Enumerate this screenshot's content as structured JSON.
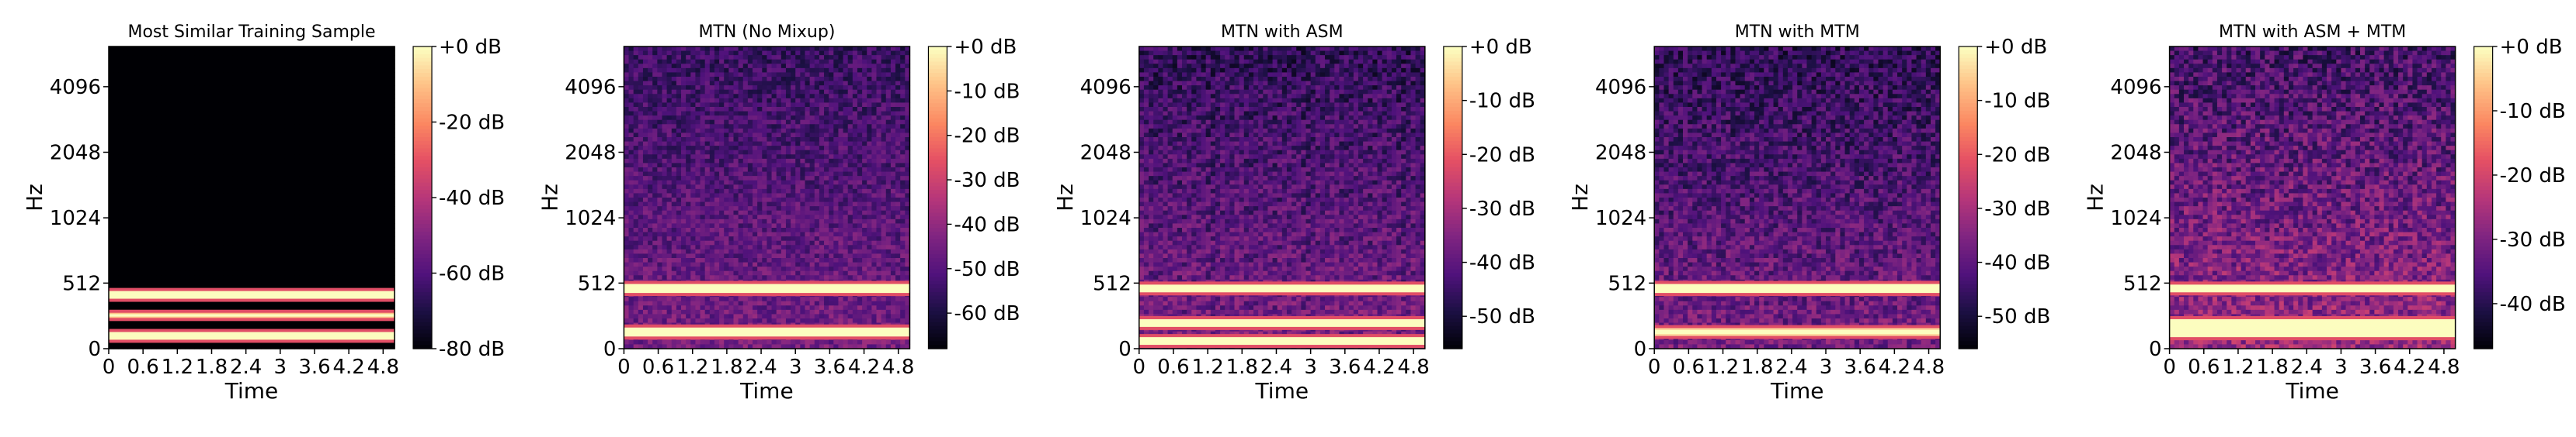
{
  "chart_data": [
    {
      "type": "heatmap",
      "title": "Most Similar Training Sample",
      "xlabel": "Time",
      "ylabel": "Hz",
      "x_ticks": [
        "0",
        "0.6",
        "1.2",
        "1.8",
        "2.4",
        "3",
        "3.6",
        "4.2",
        "4.8"
      ],
      "y_ticks": [
        "0",
        "512",
        "1024",
        "2048",
        "4096"
      ],
      "xlim": [
        0,
        5.0
      ],
      "colorbar": {
        "ticks": [
          "+0 dB",
          "-20 dB",
          "-40 dB",
          "-60 dB",
          "-80 dB"
        ],
        "range_db": [
          -80,
          0
        ]
      },
      "noise_level_db": -80,
      "bands": [
        {
          "freq_center_hz": 100,
          "width_hz": 60,
          "level_db": 0
        },
        {
          "freq_center_hz": 260,
          "width_hz": 40,
          "level_db": -10
        },
        {
          "freq_center_hz": 420,
          "width_hz": 60,
          "level_db": 0
        }
      ]
    },
    {
      "type": "heatmap",
      "title": "MTN (No Mixup)",
      "xlabel": "Time",
      "ylabel": "Hz",
      "x_ticks": [
        "0",
        "0.6",
        "1.2",
        "1.8",
        "2.4",
        "3",
        "3.6",
        "4.2",
        "4.8"
      ],
      "y_ticks": [
        "0",
        "512",
        "1024",
        "2048",
        "4096"
      ],
      "xlim": [
        0,
        5.0
      ],
      "colorbar": {
        "ticks": [
          "+0 dB",
          "-10 dB",
          "-20 dB",
          "-30 dB",
          "-40 dB",
          "-50 dB",
          "-60 dB"
        ],
        "range_db": [
          -68,
          0
        ]
      },
      "noise_level_db": -48,
      "bands": [
        {
          "freq_center_hz": 130,
          "width_hz": 70,
          "level_db": 0
        },
        {
          "freq_center_hz": 470,
          "width_hz": 70,
          "level_db": 0
        }
      ]
    },
    {
      "type": "heatmap",
      "title": "MTN with ASM",
      "xlabel": "Time",
      "ylabel": "Hz",
      "x_ticks": [
        "0",
        "0.6",
        "1.2",
        "1.8",
        "2.4",
        "3",
        "3.6",
        "4.2",
        "4.8"
      ],
      "y_ticks": [
        "0",
        "512",
        "1024",
        "2048",
        "4096"
      ],
      "xlim": [
        0,
        5.0
      ],
      "colorbar": {
        "ticks": [
          "+0 dB",
          "-10 dB",
          "-20 dB",
          "-30 dB",
          "-40 dB",
          "-50 dB"
        ],
        "range_db": [
          -56,
          0
        ]
      },
      "noise_level_db": -40,
      "bands": [
        {
          "freq_center_hz": 60,
          "width_hz": 60,
          "level_db": 0
        },
        {
          "freq_center_hz": 200,
          "width_hz": 60,
          "level_db": 0
        },
        {
          "freq_center_hz": 470,
          "width_hz": 60,
          "level_db": 0
        }
      ]
    },
    {
      "type": "heatmap",
      "title": "MTN with MTM",
      "xlabel": "Time",
      "ylabel": "Hz",
      "x_ticks": [
        "0",
        "0.6",
        "1.2",
        "1.8",
        "2.4",
        "3",
        "3.6",
        "4.2",
        "4.8"
      ],
      "y_ticks": [
        "0",
        "512",
        "1024",
        "2048",
        "4096"
      ],
      "xlim": [
        0,
        5.0
      ],
      "colorbar": {
        "ticks": [
          "+0 dB",
          "-10 dB",
          "-20 dB",
          "-30 dB",
          "-40 dB",
          "-50 dB"
        ],
        "range_db": [
          -56,
          0
        ]
      },
      "noise_level_db": -40,
      "bands": [
        {
          "freq_center_hz": 130,
          "width_hz": 60,
          "level_db": -4
        },
        {
          "freq_center_hz": 470,
          "width_hz": 70,
          "level_db": 0
        }
      ]
    },
    {
      "type": "heatmap",
      "title": "MTN with ASM + MTM",
      "xlabel": "Time",
      "ylabel": "Hz",
      "x_ticks": [
        "0",
        "0.6",
        "1.2",
        "1.8",
        "2.4",
        "3",
        "3.6",
        "4.2",
        "4.8"
      ],
      "y_ticks": [
        "0",
        "512",
        "1024",
        "2048",
        "4096"
      ],
      "xlim": [
        0,
        5.0
      ],
      "colorbar": {
        "ticks": [
          "+0 dB",
          "-10 dB",
          "-20 dB",
          "-30 dB",
          "-40 dB"
        ],
        "range_db": [
          -47,
          0
        ]
      },
      "noise_level_db": -30,
      "bands": [
        {
          "freq_center_hz": 160,
          "width_hz": 140,
          "level_db": 0
        },
        {
          "freq_center_hz": 470,
          "width_hz": 60,
          "level_db": 0
        }
      ]
    }
  ]
}
